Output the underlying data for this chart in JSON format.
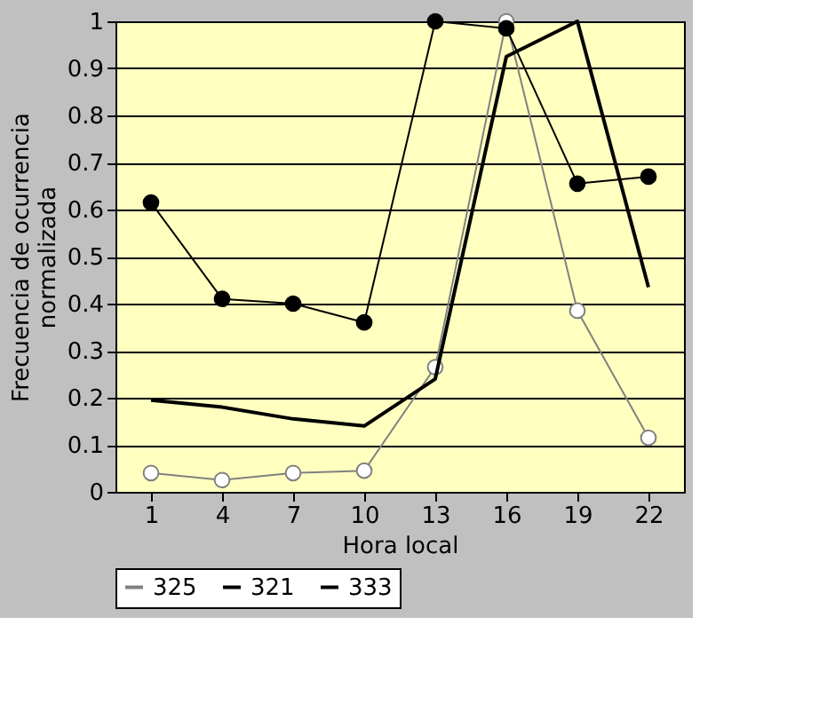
{
  "chart_data": {
    "type": "line",
    "xlabel": "Hora local",
    "ylabel": "Frecuencia de ocurrencia normalizada",
    "categories": [
      "1",
      "4",
      "7",
      "10",
      "13",
      "16",
      "19",
      "22"
    ],
    "series": [
      {
        "name": "325",
        "color": "#808080",
        "marker": "circle",
        "values": [
          0.04,
          0.025,
          0.04,
          0.045,
          0.265,
          1.0,
          0.385,
          0.115
        ]
      },
      {
        "name": "321",
        "color": "#000000",
        "marker": "circle",
        "values": [
          0.615,
          0.41,
          0.4,
          0.36,
          1.0,
          0.985,
          0.655,
          0.67
        ]
      },
      {
        "name": "333",
        "color": "#000000",
        "marker": "none",
        "values": [
          0.195,
          0.18,
          0.155,
          0.14,
          0.24,
          0.925,
          1.0,
          0.435
        ]
      }
    ],
    "ylim": [
      0,
      1
    ],
    "yticks": [
      {
        "value": 0,
        "label": "0"
      },
      0.1,
      0.2,
      0.3,
      0.4,
      0.5,
      0.6,
      0.7,
      0.8,
      0.9,
      {
        "value": 1,
        "label": "1"
      }
    ],
    "grid": "y",
    "legend": "bottom"
  }
}
